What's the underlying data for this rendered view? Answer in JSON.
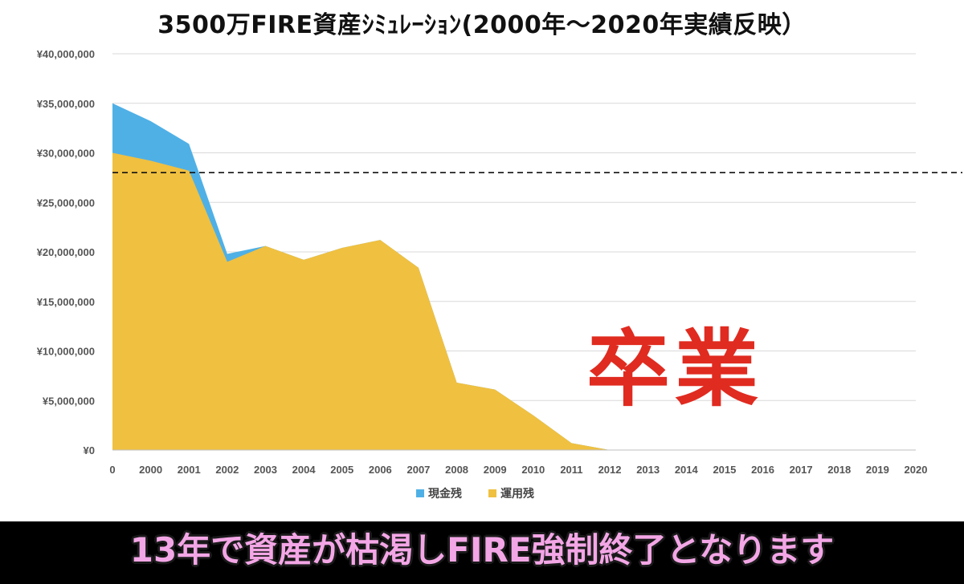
{
  "chart_data": {
    "type": "area",
    "title": "3500万FIRE資産ｼﾐｭﾚｰｼｮﾝ(2000年～2020年実績反映）",
    "categories": [
      "0",
      "2000",
      "2001",
      "2002",
      "2003",
      "2004",
      "2005",
      "2006",
      "2007",
      "2008",
      "2009",
      "2010",
      "2011",
      "2012",
      "2013",
      "2014",
      "2015",
      "2016",
      "2017",
      "2018",
      "2019",
      "2020"
    ],
    "series": [
      {
        "name": "運用残",
        "color": "#f0c040",
        "values": [
          30000000,
          29200000,
          28200000,
          19000000,
          20600000,
          19200000,
          20400000,
          21200000,
          18400000,
          6800000,
          6100000,
          3500000,
          700000,
          0,
          0,
          0,
          0,
          0,
          0,
          0,
          0,
          0
        ]
      },
      {
        "name": "現金残",
        "color": "#4fb0e6",
        "values": [
          5000000,
          4000000,
          2700000,
          800000,
          0,
          0,
          0,
          0,
          0,
          0,
          0,
          0,
          0,
          0,
          0,
          0,
          0,
          0,
          0,
          0,
          0,
          0
        ]
      }
    ],
    "stacked": true,
    "ylim": [
      0,
      40000000
    ],
    "yticks": [
      "¥0",
      "¥5,000,000",
      "¥10,000,000",
      "¥15,000,000",
      "¥20,000,000",
      "¥25,000,000",
      "¥30,000,000",
      "¥35,000,000",
      "¥40,000,000"
    ],
    "reference_line": {
      "value": 28000000,
      "style": "dashed"
    },
    "grid": true,
    "legend_position": "bottom"
  },
  "annotations": {
    "stamp": "卒業",
    "caption": "13年で資産が枯渇しFIRE強制終了となります"
  }
}
